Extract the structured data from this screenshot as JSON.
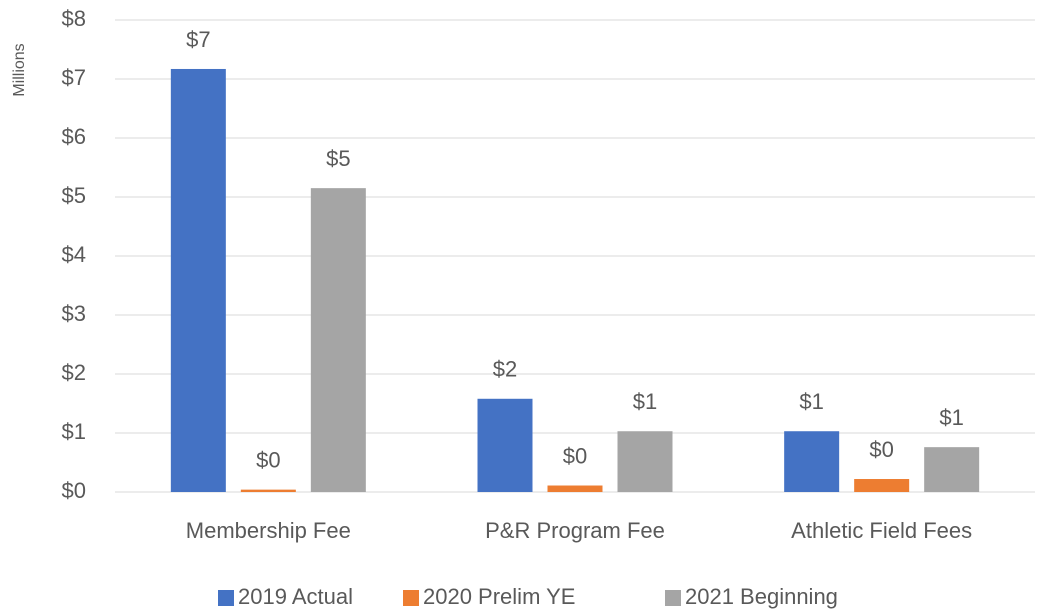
{
  "chart_data": {
    "type": "bar",
    "y_axis_label": "Millions",
    "categories": [
      "Membership Fee",
      "P&R Program Fee",
      "Athletic Field Fees"
    ],
    "series": [
      {
        "name": "2019 Actual",
        "color": "#4472c4",
        "values": [
          7.17,
          1.58,
          1.03
        ],
        "value_labels": [
          "$7",
          "$2",
          "$1"
        ]
      },
      {
        "name": "2020 Prelim YE",
        "color": "#ed7d31",
        "values": [
          0.04,
          0.11,
          0.22
        ],
        "value_labels": [
          "$0",
          "$0",
          "$0"
        ]
      },
      {
        "name": "2021 Beginning",
        "color": "#a5a5a5",
        "values": [
          5.15,
          1.03,
          0.76
        ],
        "value_labels": [
          "$5",
          "$1",
          "$1"
        ]
      }
    ],
    "ylim": [
      0,
      8
    ],
    "yticks": [
      {
        "value": 0,
        "label": "$0"
      },
      {
        "value": 1,
        "label": "$1"
      },
      {
        "value": 2,
        "label": "$2"
      },
      {
        "value": 3,
        "label": "$3"
      },
      {
        "value": 4,
        "label": "$4"
      },
      {
        "value": 5,
        "label": "$5"
      },
      {
        "value": 6,
        "label": "$6"
      },
      {
        "value": 7,
        "label": "$7"
      },
      {
        "value": 8,
        "label": "$8"
      }
    ],
    "grid": true,
    "legend": "bottom"
  }
}
